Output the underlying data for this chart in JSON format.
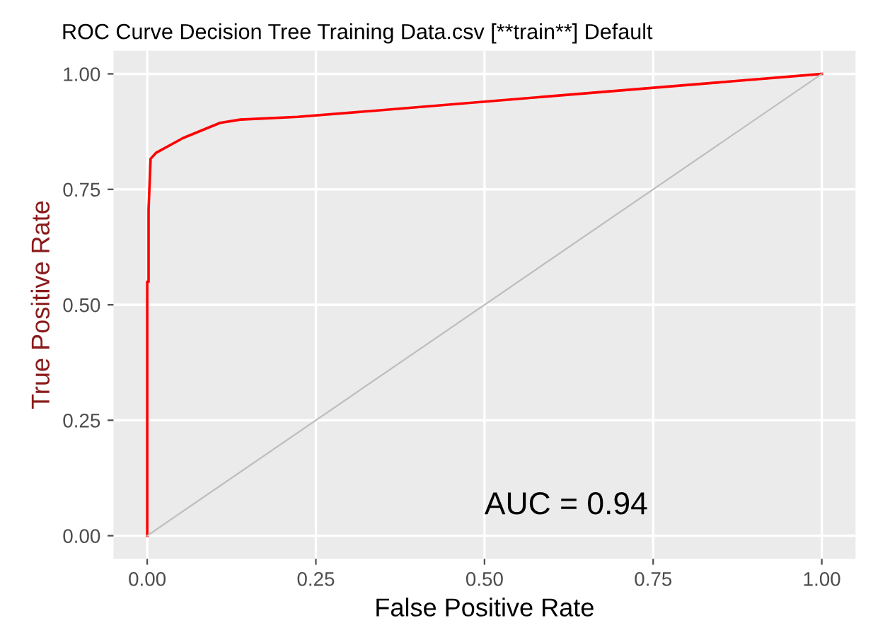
{
  "chart_data": {
    "type": "line",
    "title": "ROC Curve Decision Tree Training Data.csv [**train**] Default",
    "xlabel": "False Positive Rate",
    "ylabel": "True Positive Rate",
    "series": [
      {
        "color": "#ff0000",
        "x": [
          0,
          0,
          0.002,
          0.002,
          0.005,
          0.013,
          0.053,
          0.108,
          0.138,
          0.223,
          0.335,
          1
        ],
        "values": [
          0,
          0.55,
          0.55,
          0.706,
          0.816,
          0.829,
          0.861,
          0.894,
          0.901,
          0.907,
          0.92,
          1
        ]
      },
      {
        "color": "#bebebe",
        "x": [
          0,
          1
        ],
        "values": [
          0,
          1
        ]
      }
    ],
    "annotations": [
      "AUC = 0.94"
    ],
    "xlim": [
      -0.05,
      1.05
    ],
    "ylim": [
      -0.05,
      1.05
    ],
    "xticks": [
      {
        "value": 0,
        "label": "0.00"
      },
      {
        "value": 0.25,
        "label": "0.25"
      },
      {
        "value": 0.5,
        "label": "0.50"
      },
      {
        "value": 0.75,
        "label": "0.75"
      },
      {
        "value": 1,
        "label": "1.00"
      }
    ],
    "yticks": [
      {
        "value": 0,
        "label": "0.00"
      },
      {
        "value": 0.25,
        "label": "0.25"
      },
      {
        "value": 0.5,
        "label": "0.50"
      },
      {
        "value": 0.75,
        "label": "0.75"
      },
      {
        "value": 1,
        "label": "1.00"
      }
    ],
    "grid": true,
    "legend": false
  }
}
